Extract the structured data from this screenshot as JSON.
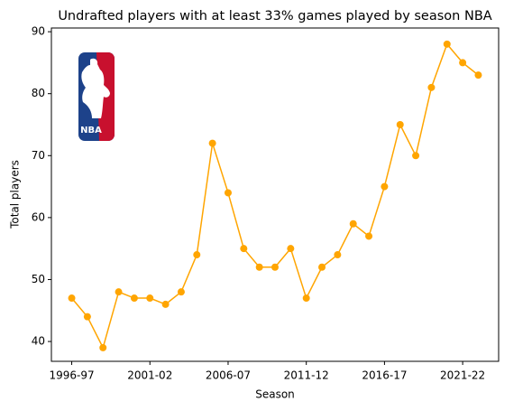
{
  "chart_data": {
    "type": "line",
    "title": "Undrafted players with at least 33% games played by season NBA",
    "x_label": "Season",
    "y_label": "Total players",
    "logo_text": "NBA",
    "categories": [
      "1996-97",
      null,
      null,
      null,
      null,
      "2001-02",
      null,
      null,
      null,
      null,
      "2006-07",
      null,
      null,
      null,
      null,
      "2011-12",
      null,
      null,
      null,
      null,
      "2016-17",
      null,
      null,
      null,
      null,
      "2021-22",
      null
    ],
    "series": [
      {
        "name": "Total players",
        "color": "#ffa500",
        "values": [
          47,
          44,
          39,
          48,
          47,
          47,
          46,
          48,
          54,
          72,
          64,
          55,
          52,
          52,
          55,
          47,
          52,
          54,
          59,
          57,
          65,
          75,
          70,
          81,
          88,
          85,
          83
        ]
      }
    ],
    "ylim": [
      36.8,
      90.6
    ],
    "yticks": [
      40,
      50,
      60,
      70,
      80,
      90
    ],
    "grid": false
  }
}
